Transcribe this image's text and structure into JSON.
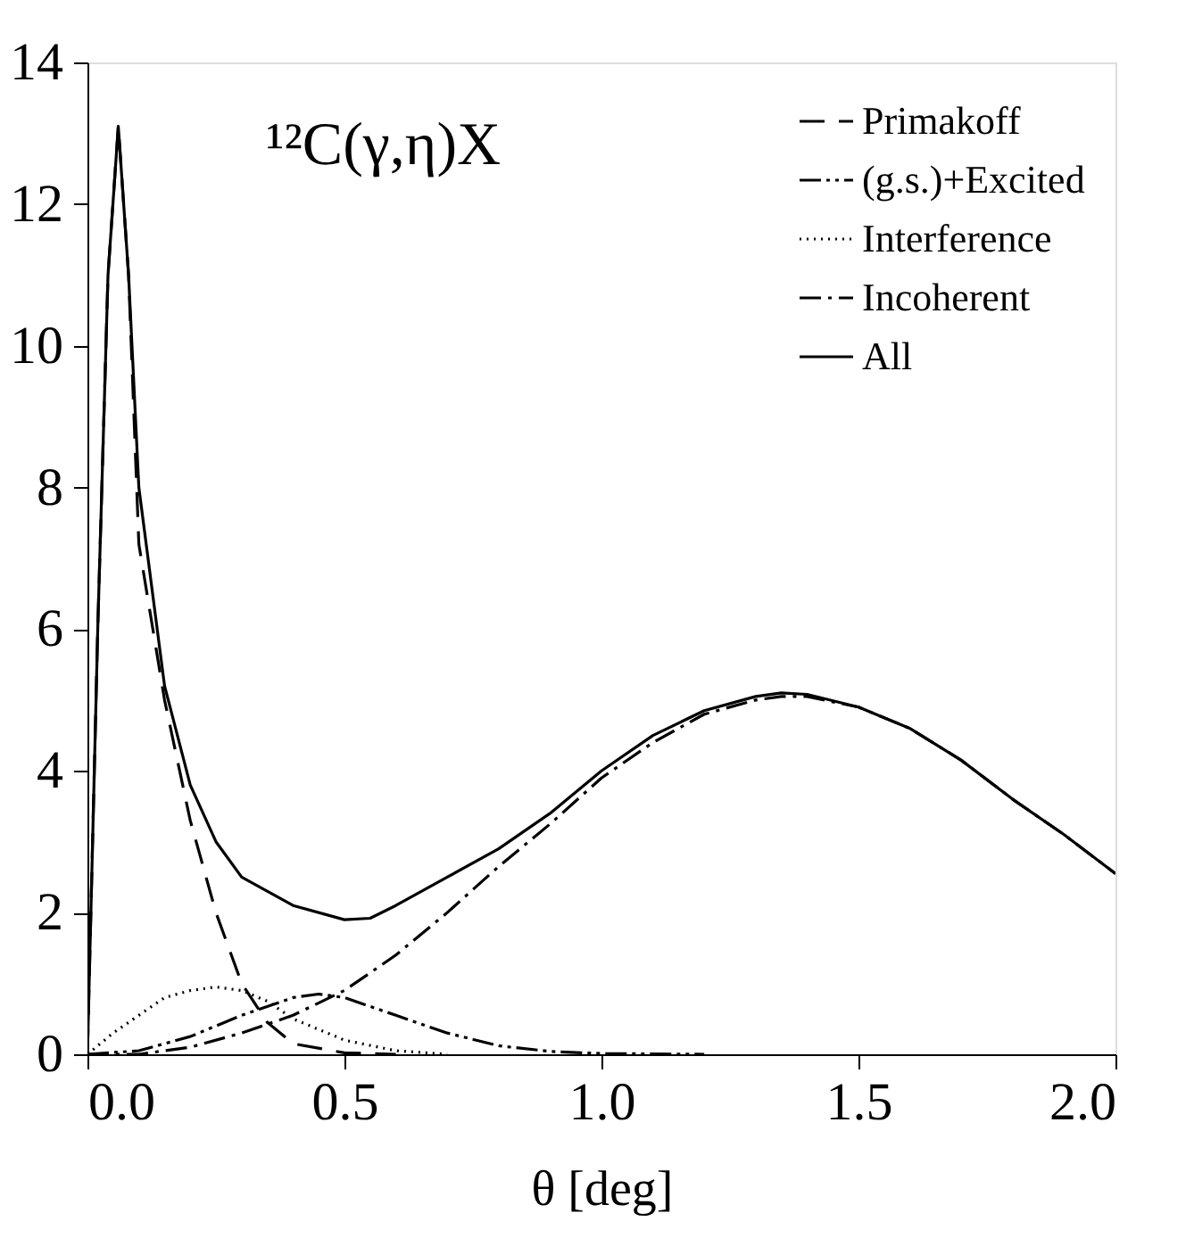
{
  "chart_data": {
    "type": "line",
    "xlabel": "θ [deg]",
    "annotations": [
      "¹²C(γ,η)X"
    ],
    "xlim": [
      0,
      2
    ],
    "ylim": [
      0,
      14
    ],
    "xticks": [
      {
        "value": 0,
        "label": "0.0"
      },
      {
        "value": 0.5,
        "label": "0.5"
      },
      {
        "value": 1,
        "label": "1.0"
      },
      {
        "value": 1.5,
        "label": "1.5"
      },
      {
        "value": 2,
        "label": "2.0"
      }
    ],
    "yticks": [
      0,
      2,
      4,
      6,
      8,
      10,
      12,
      14
    ],
    "grid": false,
    "legend": "top right",
    "series": [
      {
        "name": "Primakoff",
        "color": "#000000",
        "line_style": "dashed",
        "x": [
          0,
          0.02,
          0.04,
          0.06,
          0.08,
          0.1,
          0.15,
          0.2,
          0.25,
          0.3,
          0.35,
          0.4,
          0.5,
          0.6
        ],
        "values": [
          0,
          6,
          11,
          13.1,
          11,
          7.2,
          5,
          3.3,
          2.0,
          1.0,
          0.45,
          0.15,
          0.02,
          0
        ]
      },
      {
        "name": "(g.s.)+Excited",
        "color": "#000000",
        "line_style": "dashdotdot",
        "x": [
          0,
          0.1,
          0.2,
          0.3,
          0.4,
          0.45,
          0.5,
          0.6,
          0.7,
          0.8,
          0.9,
          1.0,
          1.2
        ],
        "values": [
          0,
          0.05,
          0.25,
          0.55,
          0.8,
          0.85,
          0.8,
          0.55,
          0.3,
          0.12,
          0.04,
          0.01,
          0
        ]
      },
      {
        "name": "Interference",
        "color": "#000000",
        "line_style": "dotted",
        "x": [
          0,
          0.05,
          0.1,
          0.15,
          0.2,
          0.25,
          0.3,
          0.35,
          0.4,
          0.5,
          0.6,
          0.7
        ],
        "values": [
          0,
          0.3,
          0.55,
          0.8,
          0.9,
          0.95,
          0.9,
          0.75,
          0.5,
          0.2,
          0.05,
          0
        ]
      },
      {
        "name": "Incoherent",
        "color": "#000000",
        "line_style": "dashdot",
        "x": [
          0,
          0.1,
          0.2,
          0.3,
          0.4,
          0.5,
          0.6,
          0.7,
          0.8,
          0.9,
          1.0,
          1.1,
          1.2,
          1.3,
          1.35,
          1.4,
          1.5,
          1.6,
          1.7,
          1.8,
          1.9,
          2.0
        ],
        "values": [
          0,
          0,
          0.1,
          0.3,
          0.55,
          0.9,
          1.4,
          2.0,
          2.65,
          3.25,
          3.9,
          4.4,
          4.8,
          5.0,
          5.05,
          5.05,
          4.9,
          4.6,
          4.15,
          3.6,
          3.1,
          2.55
        ]
      },
      {
        "name": "All",
        "color": "#000000",
        "line_style": "solid",
        "x": [
          0,
          0.02,
          0.04,
          0.06,
          0.08,
          0.1,
          0.15,
          0.2,
          0.25,
          0.3,
          0.4,
          0.5,
          0.55,
          0.6,
          0.7,
          0.8,
          0.9,
          1.0,
          1.1,
          1.2,
          1.3,
          1.35,
          1.4,
          1.5,
          1.6,
          1.7,
          1.8,
          1.9,
          2.0
        ],
        "values": [
          0,
          6,
          11,
          13.1,
          11,
          8,
          5.2,
          3.8,
          3.0,
          2.5,
          2.1,
          1.9,
          1.92,
          2.1,
          2.5,
          2.9,
          3.4,
          4.0,
          4.5,
          4.85,
          5.05,
          5.1,
          5.08,
          4.9,
          4.6,
          4.15,
          3.6,
          3.1,
          2.55
        ]
      }
    ]
  }
}
